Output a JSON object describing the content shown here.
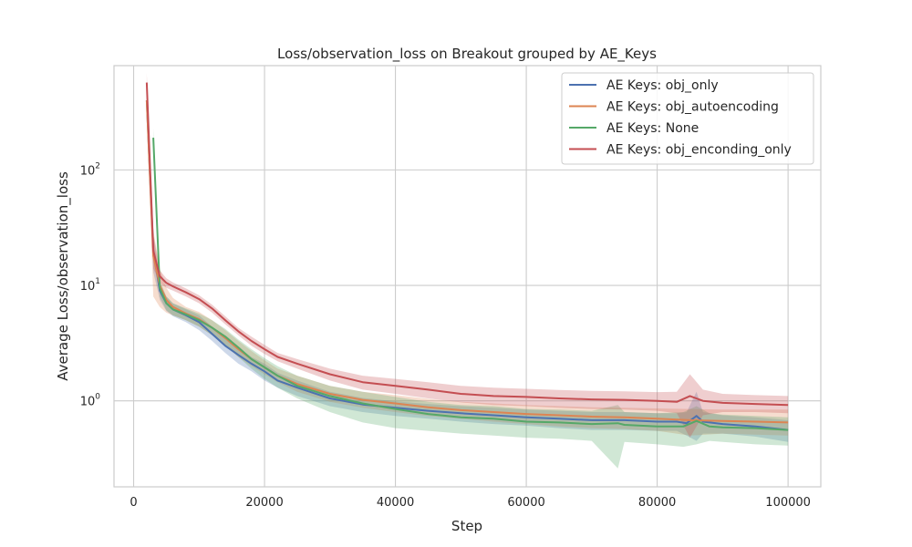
{
  "chart_data": {
    "type": "line",
    "title": "Loss/observation_loss on Breakout grouped by AE_Keys",
    "xlabel": "Step",
    "ylabel": "Average Loss/observation_loss",
    "yscale": "log",
    "xlim": [
      -3000,
      105000
    ],
    "ylim": [
      0.18,
      800
    ],
    "x_ticks": [
      0,
      20000,
      40000,
      60000,
      80000,
      100000
    ],
    "x_tick_labels": [
      "0",
      "20000",
      "40000",
      "60000",
      "80000",
      "100000"
    ],
    "y_ticks": [
      1,
      10,
      100
    ],
    "y_tick_bases": [
      "10",
      "10",
      "10"
    ],
    "y_tick_exponents": [
      "0",
      "1",
      "2"
    ],
    "grid": true,
    "legend_position": "top-right",
    "series": [
      {
        "name": "AE Keys: obj_only",
        "color": "#4c72b0",
        "x": [
          2000,
          3000,
          4000,
          5000,
          6000,
          8000,
          10000,
          12000,
          14000,
          16000,
          18000,
          20000,
          22000,
          25000,
          30000,
          35000,
          40000,
          45000,
          50000,
          55000,
          60000,
          65000,
          70000,
          75000,
          80000,
          83000,
          84500,
          86000,
          87000,
          90000,
          95000,
          100000
        ],
        "y": [
          400,
          20,
          9,
          7,
          6.2,
          5.5,
          4.8,
          3.8,
          3.0,
          2.5,
          2.1,
          1.8,
          1.5,
          1.3,
          1.05,
          0.93,
          0.87,
          0.82,
          0.78,
          0.75,
          0.72,
          0.7,
          0.68,
          0.68,
          0.66,
          0.66,
          0.64,
          0.74,
          0.66,
          0.63,
          0.6,
          0.56
        ],
        "lower": [
          300,
          13,
          7.5,
          6.0,
          5.4,
          4.8,
          4.1,
          3.3,
          2.6,
          2.1,
          1.8,
          1.5,
          1.3,
          1.1,
          0.9,
          0.8,
          0.74,
          0.7,
          0.66,
          0.63,
          0.61,
          0.58,
          0.56,
          0.56,
          0.55,
          0.55,
          0.5,
          0.45,
          0.52,
          0.52,
          0.49,
          0.44
        ],
        "upper": [
          500,
          28,
          10.5,
          8.0,
          7.0,
          6.2,
          5.5,
          4.4,
          3.5,
          2.9,
          2.4,
          2.1,
          1.75,
          1.5,
          1.2,
          1.06,
          0.99,
          0.94,
          0.9,
          0.87,
          0.84,
          0.82,
          0.8,
          0.8,
          0.78,
          0.78,
          0.8,
          1.2,
          0.8,
          0.75,
          0.72,
          0.68
        ]
      },
      {
        "name": "AE Keys: obj_autoencoding",
        "color": "#dd8452",
        "x": [
          2000,
          3000,
          4000,
          5000,
          6000,
          8000,
          10000,
          12000,
          14000,
          16000,
          18000,
          20000,
          22000,
          25000,
          30000,
          35000,
          40000,
          45000,
          50000,
          55000,
          60000,
          65000,
          70000,
          75000,
          80000,
          85000,
          90000,
          95000,
          100000
        ],
        "y": [
          400,
          18,
          10,
          7.5,
          6.5,
          5.7,
          5.1,
          4.3,
          3.5,
          2.8,
          2.3,
          1.95,
          1.65,
          1.4,
          1.15,
          1.02,
          0.95,
          0.88,
          0.83,
          0.8,
          0.77,
          0.75,
          0.73,
          0.72,
          0.7,
          0.68,
          0.67,
          0.66,
          0.65
        ],
        "lower": [
          300,
          8,
          6.5,
          5.8,
          5.5,
          5.0,
          4.4,
          3.7,
          3.0,
          2.4,
          2.0,
          1.7,
          1.45,
          1.2,
          0.98,
          0.87,
          0.8,
          0.74,
          0.7,
          0.66,
          0.63,
          0.6,
          0.58,
          0.57,
          0.55,
          0.5,
          0.52,
          0.51,
          0.5
        ],
        "upper": [
          500,
          30,
          14,
          9.5,
          7.8,
          6.5,
          5.9,
          5.0,
          4.1,
          3.3,
          2.7,
          2.25,
          1.9,
          1.65,
          1.35,
          1.2,
          1.12,
          1.04,
          0.98,
          0.95,
          0.92,
          0.9,
          0.88,
          0.87,
          0.86,
          0.85,
          0.84,
          0.84,
          0.84
        ]
      },
      {
        "name": "AE Keys: None",
        "color": "#55a868",
        "x": [
          3000,
          4000,
          5000,
          6000,
          8000,
          10000,
          12000,
          14000,
          16000,
          18000,
          20000,
          22000,
          25000,
          30000,
          35000,
          40000,
          45000,
          50000,
          55000,
          60000,
          65000,
          70000,
          74000,
          75000,
          80000,
          84000,
          86000,
          88000,
          90000,
          95000,
          100000
        ],
        "y": [
          190,
          9.5,
          7,
          6.2,
          5.6,
          5.0,
          4.3,
          3.6,
          2.9,
          2.3,
          1.95,
          1.65,
          1.35,
          1.1,
          0.95,
          0.85,
          0.77,
          0.72,
          0.7,
          0.66,
          0.65,
          0.63,
          0.64,
          0.62,
          0.6,
          0.6,
          0.67,
          0.6,
          0.59,
          0.58,
          0.56
        ],
        "lower": [
          150,
          8.0,
          6.1,
          5.5,
          5.0,
          4.4,
          3.7,
          3.0,
          2.4,
          1.9,
          1.55,
          1.3,
          1.05,
          0.8,
          0.65,
          0.58,
          0.55,
          0.52,
          0.5,
          0.48,
          0.47,
          0.45,
          0.26,
          0.44,
          0.42,
          0.4,
          0.42,
          0.45,
          0.44,
          0.42,
          0.41
        ],
        "upper": [
          230,
          11.0,
          8.0,
          7.0,
          6.3,
          5.7,
          5.0,
          4.2,
          3.4,
          2.8,
          2.35,
          2.0,
          1.65,
          1.35,
          1.2,
          1.08,
          0.98,
          0.92,
          0.9,
          0.85,
          0.84,
          0.82,
          0.92,
          0.8,
          0.78,
          0.8,
          0.9,
          0.78,
          0.76,
          0.74,
          0.72
        ]
      },
      {
        "name": "AE Keys: obj_enconding_only",
        "color": "#c44e52",
        "x": [
          2000,
          3000,
          4000,
          5000,
          6000,
          8000,
          10000,
          12000,
          14000,
          16000,
          18000,
          20000,
          22000,
          25000,
          30000,
          35000,
          40000,
          45000,
          50000,
          55000,
          60000,
          65000,
          70000,
          75000,
          80000,
          83000,
          85000,
          87000,
          90000,
          95000,
          100000
        ],
        "y": [
          570,
          20,
          12,
          10.5,
          9.8,
          8.7,
          7.6,
          6.3,
          5.0,
          4.0,
          3.3,
          2.8,
          2.4,
          2.1,
          1.7,
          1.45,
          1.35,
          1.25,
          1.15,
          1.1,
          1.08,
          1.05,
          1.03,
          1.02,
          1.0,
          0.98,
          1.1,
          1.0,
          0.96,
          0.94,
          0.92
        ],
        "lower": [
          450,
          14,
          10.5,
          9.5,
          9.0,
          8.0,
          7.0,
          5.8,
          4.6,
          3.7,
          3.0,
          2.55,
          2.2,
          1.9,
          1.5,
          1.25,
          1.15,
          1.05,
          0.97,
          0.92,
          0.9,
          0.87,
          0.85,
          0.84,
          0.82,
          0.78,
          0.48,
          0.75,
          0.8,
          0.8,
          0.78
        ],
        "upper": [
          690,
          28,
          13.5,
          11.5,
          10.6,
          9.4,
          8.2,
          6.8,
          5.4,
          4.3,
          3.6,
          3.05,
          2.6,
          2.3,
          1.9,
          1.65,
          1.55,
          1.45,
          1.35,
          1.3,
          1.27,
          1.24,
          1.22,
          1.21,
          1.19,
          1.2,
          1.7,
          1.25,
          1.15,
          1.12,
          1.1
        ]
      }
    ]
  }
}
